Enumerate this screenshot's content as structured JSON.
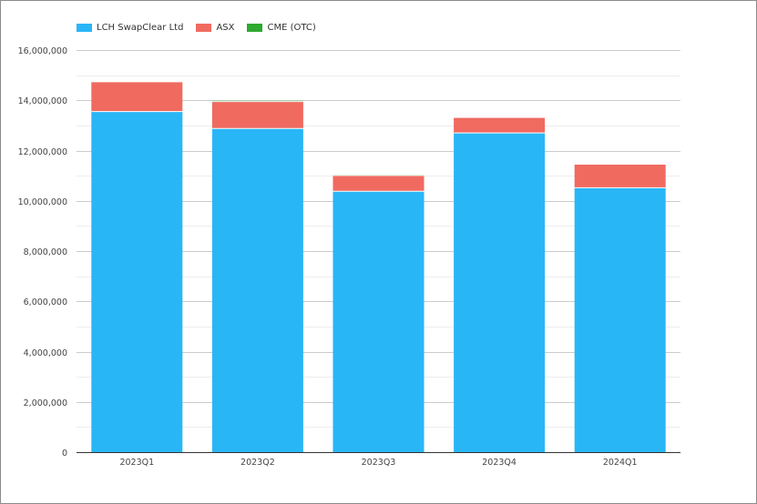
{
  "chart_data": {
    "type": "bar",
    "stacked": true,
    "title": "",
    "xlabel": "",
    "ylabel": "",
    "categories": [
      "2023Q1",
      "2023Q2",
      "2023Q3",
      "2023Q4",
      "2024Q1"
    ],
    "series": [
      {
        "name": "LCH SwapClear Ltd",
        "color": "#29b6f6",
        "values": [
          13550000,
          12880000,
          10380000,
          12700000,
          10520000
        ]
      },
      {
        "name": "ASX",
        "color": "#f06a60",
        "values": [
          1170000,
          1070000,
          630000,
          600000,
          920000
        ]
      },
      {
        "name": "CME (OTC)",
        "color": "#2eaa2e",
        "values": [
          0,
          30000,
          20000,
          0,
          0
        ]
      }
    ],
    "ylim": [
      0,
      16000000
    ],
    "yticks": [
      0,
      2000000,
      4000000,
      6000000,
      8000000,
      10000000,
      12000000,
      14000000,
      16000000
    ],
    "ytick_labels": [
      "0",
      "2,000,000",
      "4,000,000",
      "6,000,000",
      "8,000,000",
      "10,000,000",
      "12,000,000",
      "14,000,000",
      "16,000,000"
    ],
    "grid": true,
    "legend_position": "top-left"
  }
}
